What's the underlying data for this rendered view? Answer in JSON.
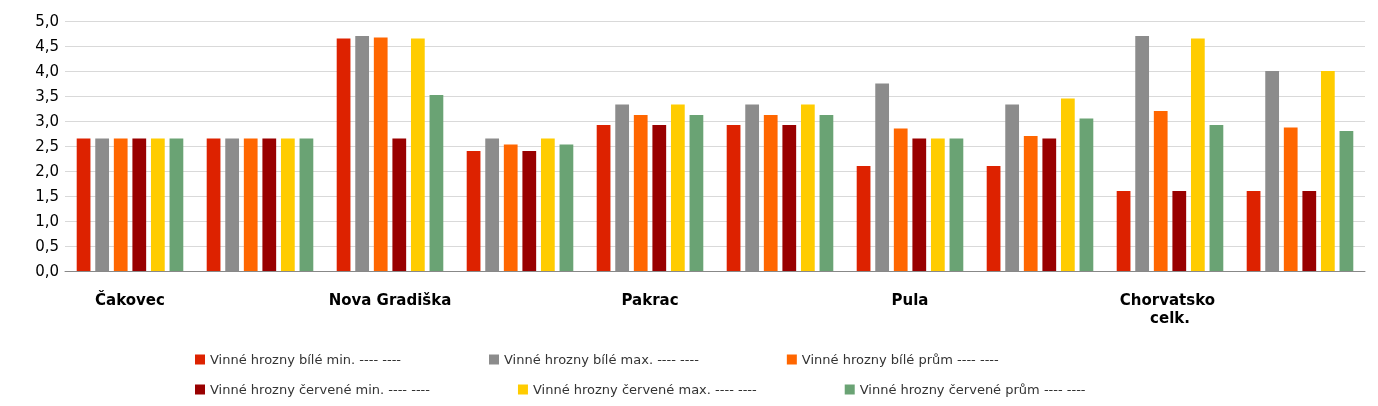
{
  "chart_data": {
    "type": "bar",
    "categories": [
      "Čakovec",
      null,
      "Nova Gradiška",
      null,
      "Pakrac",
      null,
      "Pula",
      null,
      "Chorvatsko celk.",
      null
    ],
    "series": [
      {
        "name": "Vinné hrozny bílé min. ---- ----",
        "color": "#dd2200",
        "values": [
          2.65,
          2.65,
          4.65,
          2.4,
          2.92,
          2.92,
          2.1,
          2.1,
          1.6,
          1.6
        ]
      },
      {
        "name": "Vinné hrozny bílé max. ---- ----",
        "color": "#8c8c8c",
        "values": [
          2.65,
          2.65,
          4.7,
          2.65,
          3.33,
          3.33,
          3.75,
          3.33,
          4.7,
          4.0
        ]
      },
      {
        "name": "Vinné hrozny bílé prům ---- ----",
        "color": "#ff6600",
        "values": [
          2.65,
          2.65,
          4.67,
          2.53,
          3.12,
          3.12,
          2.85,
          2.7,
          3.2,
          2.87
        ]
      },
      {
        "name": "Vinné hrozny červené min. ---- ----",
        "color": "#990000",
        "values": [
          2.65,
          2.65,
          2.65,
          2.4,
          2.92,
          2.92,
          2.65,
          2.65,
          1.6,
          1.6
        ]
      },
      {
        "name": "Vinné hrozny červené max. ---- ----",
        "color": "#ffcc00",
        "values": [
          2.65,
          2.65,
          4.65,
          2.65,
          3.33,
          3.33,
          2.65,
          3.45,
          4.65,
          4.0
        ]
      },
      {
        "name": "Vinné hrozny červené prům ---- ----",
        "color": "#6aa374",
        "values": [
          2.65,
          2.65,
          3.52,
          2.53,
          3.12,
          3.12,
          2.65,
          3.05,
          2.92,
          2.8
        ]
      }
    ],
    "ylim": [
      0,
      5
    ],
    "yticks": [
      {
        "value": 0,
        "label": "0,0"
      },
      {
        "value": 0.5,
        "label": "0,5"
      },
      {
        "value": 1,
        "label": "1,0"
      },
      {
        "value": 1.5,
        "label": "1,5"
      },
      {
        "value": 2,
        "label": "2,0"
      },
      {
        "value": 2.5,
        "label": "2,5"
      },
      {
        "value": 3,
        "label": "3,0"
      },
      {
        "value": 3.5,
        "label": "3,5"
      },
      {
        "value": 4,
        "label": "4,0"
      },
      {
        "value": 4.5,
        "label": "4,5"
      },
      {
        "value": 5,
        "label": "5,0"
      }
    ],
    "grid": "y",
    "legend": "bottom"
  }
}
